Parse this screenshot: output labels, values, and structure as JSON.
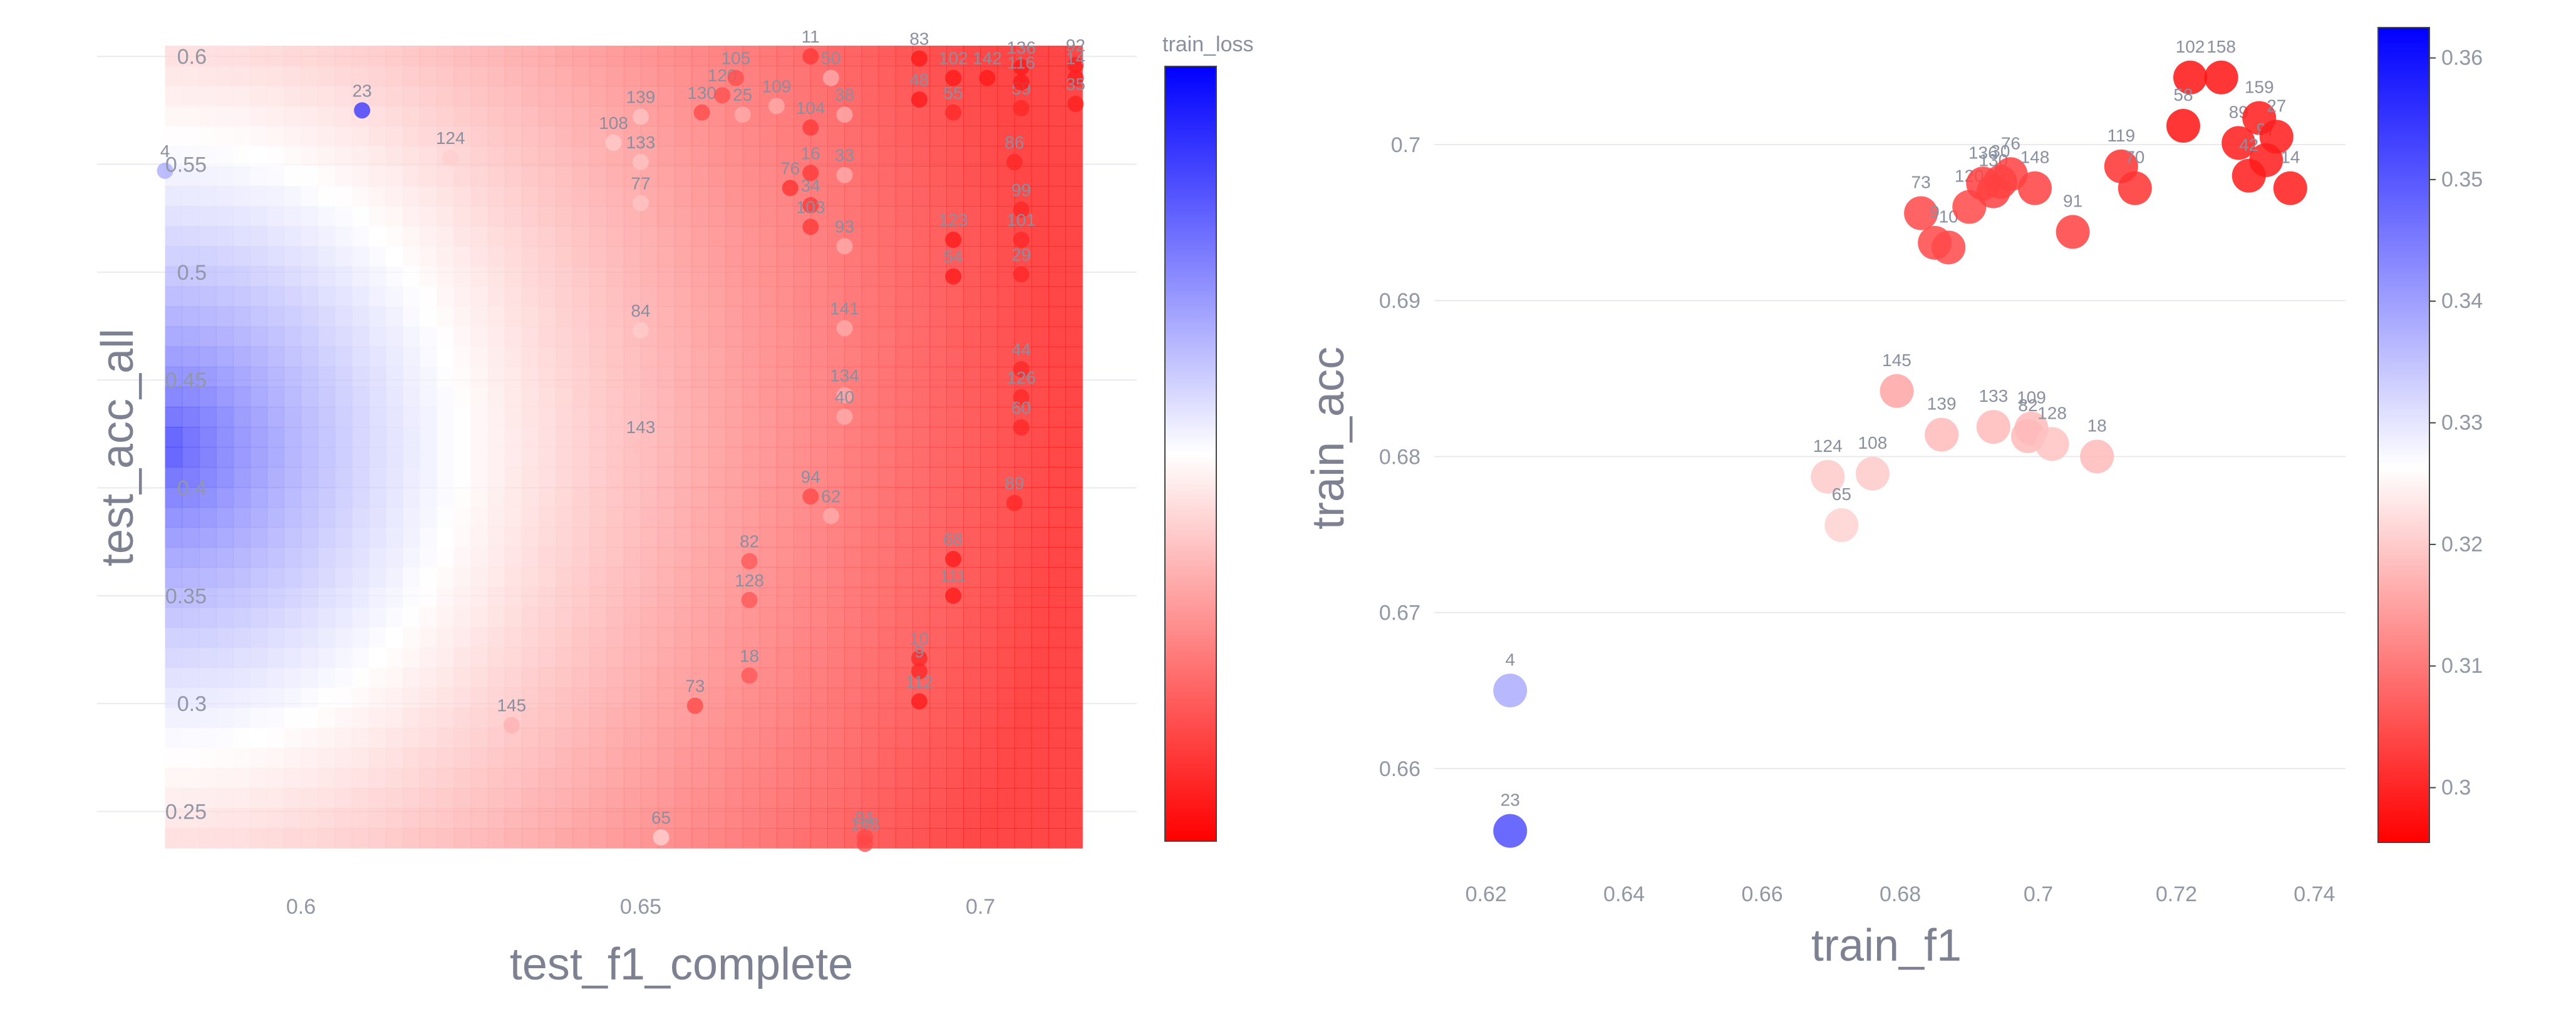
{
  "chart_data": [
    {
      "type": "scatter",
      "title": "",
      "xlabel": "test_f1_complete",
      "ylabel": "test_acc_all",
      "xlim": [
        0.57,
        0.723
      ],
      "ylim": [
        0.22,
        0.616
      ],
      "xticks": [
        0.6,
        0.65,
        0.7
      ],
      "xtick_labels": [
        "0.6",
        "0.65",
        "0.7"
      ],
      "yticks": [
        0.25,
        0.3,
        0.35,
        0.4,
        0.45,
        0.5,
        0.55,
        0.6
      ],
      "ytick_labels": [
        "0.25",
        "0.3",
        "0.35",
        "0.4",
        "0.45",
        "0.5",
        "0.55",
        "0.6"
      ],
      "background": "interpolated heatmap of train_loss (blue = high, white = mid, red = low)",
      "color_by": "train_loss",
      "colorbar": {
        "title": "train_loss",
        "colorscale": [
          "#ff0000",
          "#ffffff",
          "#0000ff"
        ],
        "min": 0.295,
        "max": 0.362,
        "ticks": [],
        "tick_labels": []
      },
      "points": [
        {
          "label": "4",
          "x": 0.58,
          "y": 0.547,
          "c": 0.34
        },
        {
          "label": "23",
          "x": 0.609,
          "y": 0.575,
          "c": 0.356
        },
        {
          "label": "124",
          "x": 0.622,
          "y": 0.553,
          "c": 0.322
        },
        {
          "label": "108",
          "x": 0.646,
          "y": 0.56,
          "c": 0.322
        },
        {
          "label": "139",
          "x": 0.65,
          "y": 0.572,
          "c": 0.321
        },
        {
          "label": "133",
          "x": 0.65,
          "y": 0.551,
          "c": 0.321
        },
        {
          "label": "77",
          "x": 0.65,
          "y": 0.532,
          "c": 0.321
        },
        {
          "label": "84",
          "x": 0.65,
          "y": 0.473,
          "c": 0.322
        },
        {
          "label": "143",
          "x": 0.65,
          "y": 0.419,
          "c": 0.32
        },
        {
          "label": "145",
          "x": 0.631,
          "y": 0.29,
          "c": 0.318
        },
        {
          "label": "65",
          "x": 0.653,
          "y": 0.238,
          "c": 0.323
        },
        {
          "label": "130",
          "x": 0.659,
          "y": 0.574,
          "c": 0.304
        },
        {
          "label": "120",
          "x": 0.662,
          "y": 0.582,
          "c": 0.305
        },
        {
          "label": "105",
          "x": 0.664,
          "y": 0.59,
          "c": 0.305
        },
        {
          "label": "25",
          "x": 0.665,
          "y": 0.573,
          "c": 0.318
        },
        {
          "label": "109",
          "x": 0.67,
          "y": 0.577,
          "c": 0.318
        },
        {
          "label": "76",
          "x": 0.672,
          "y": 0.539,
          "c": 0.301
        },
        {
          "label": "34",
          "x": 0.675,
          "y": 0.531,
          "c": 0.302
        },
        {
          "label": "16",
          "x": 0.675,
          "y": 0.546,
          "c": 0.302
        },
        {
          "label": "103",
          "x": 0.675,
          "y": 0.521,
          "c": 0.302
        },
        {
          "label": "104",
          "x": 0.675,
          "y": 0.567,
          "c": 0.302
        },
        {
          "label": "11",
          "x": 0.675,
          "y": 0.6,
          "c": 0.302
        },
        {
          "label": "33",
          "x": 0.68,
          "y": 0.545,
          "c": 0.318
        },
        {
          "label": "38",
          "x": 0.68,
          "y": 0.573,
          "c": 0.318
        },
        {
          "label": "50",
          "x": 0.678,
          "y": 0.59,
          "c": 0.318
        },
        {
          "label": "93",
          "x": 0.68,
          "y": 0.512,
          "c": 0.318
        },
        {
          "label": "141",
          "x": 0.68,
          "y": 0.474,
          "c": 0.318
        },
        {
          "label": "134",
          "x": 0.68,
          "y": 0.443,
          "c": 0.318
        },
        {
          "label": "40",
          "x": 0.68,
          "y": 0.433,
          "c": 0.318
        },
        {
          "label": "94",
          "x": 0.675,
          "y": 0.396,
          "c": 0.304
        },
        {
          "label": "62",
          "x": 0.678,
          "y": 0.387,
          "c": 0.318
        },
        {
          "label": "82",
          "x": 0.666,
          "y": 0.366,
          "c": 0.306
        },
        {
          "label": "128",
          "x": 0.666,
          "y": 0.348,
          "c": 0.306
        },
        {
          "label": "18",
          "x": 0.666,
          "y": 0.313,
          "c": 0.306
        },
        {
          "label": "73",
          "x": 0.658,
          "y": 0.299,
          "c": 0.304
        },
        {
          "label": "91",
          "x": 0.683,
          "y": 0.238,
          "c": 0.304
        },
        {
          "label": "148",
          "x": 0.683,
          "y": 0.235,
          "c": 0.304
        },
        {
          "label": "83",
          "x": 0.691,
          "y": 0.599,
          "c": 0.298
        },
        {
          "label": "48",
          "x": 0.691,
          "y": 0.58,
          "c": 0.298
        },
        {
          "label": "10",
          "x": 0.691,
          "y": 0.321,
          "c": 0.3
        },
        {
          "label": "9",
          "x": 0.691,
          "y": 0.315,
          "c": 0.3
        },
        {
          "label": "112",
          "x": 0.691,
          "y": 0.301,
          "c": 0.298
        },
        {
          "label": "102",
          "x": 0.696,
          "y": 0.59,
          "c": 0.298
        },
        {
          "label": "55",
          "x": 0.696,
          "y": 0.574,
          "c": 0.3
        },
        {
          "label": "123",
          "x": 0.696,
          "y": 0.515,
          "c": 0.298
        },
        {
          "label": "54",
          "x": 0.696,
          "y": 0.498,
          "c": 0.298
        },
        {
          "label": "68",
          "x": 0.696,
          "y": 0.367,
          "c": 0.298
        },
        {
          "label": "111",
          "x": 0.696,
          "y": 0.35,
          "c": 0.298
        },
        {
          "label": "142",
          "x": 0.701,
          "y": 0.59,
          "c": 0.298
        },
        {
          "label": "86",
          "x": 0.705,
          "y": 0.551,
          "c": 0.3
        },
        {
          "label": "99",
          "x": 0.706,
          "y": 0.529,
          "c": 0.3
        },
        {
          "label": "101",
          "x": 0.706,
          "y": 0.515,
          "c": 0.3
        },
        {
          "label": "29",
          "x": 0.706,
          "y": 0.499,
          "c": 0.3
        },
        {
          "label": "44",
          "x": 0.706,
          "y": 0.455,
          "c": 0.3
        },
        {
          "label": "126",
          "x": 0.706,
          "y": 0.442,
          "c": 0.3
        },
        {
          "label": "60",
          "x": 0.706,
          "y": 0.428,
          "c": 0.3
        },
        {
          "label": "89",
          "x": 0.705,
          "y": 0.393,
          "c": 0.3
        },
        {
          "label": "59",
          "x": 0.706,
          "y": 0.576,
          "c": 0.3
        },
        {
          "label": "136",
          "x": 0.706,
          "y": 0.595,
          "c": 0.298
        },
        {
          "label": "116",
          "x": 0.706,
          "y": 0.588,
          "c": 0.298
        },
        {
          "label": "92",
          "x": 0.714,
          "y": 0.596,
          "c": 0.299
        },
        {
          "label": "14",
          "x": 0.714,
          "y": 0.59,
          "c": 0.299
        },
        {
          "label": "35",
          "x": 0.714,
          "y": 0.578,
          "c": 0.299
        }
      ]
    },
    {
      "type": "scatter",
      "title": "",
      "xlabel": "train_f1",
      "ylabel": "train_acc",
      "xlim": [
        0.6125,
        0.7445
      ],
      "ylim": [
        0.6535,
        0.7075
      ],
      "xticks": [
        0.62,
        0.64,
        0.66,
        0.68,
        0.7,
        0.72,
        0.74
      ],
      "xtick_labels": [
        "0.62",
        "0.64",
        "0.66",
        "0.68",
        "0.7",
        "0.72",
        "0.74"
      ],
      "yticks": [
        0.66,
        0.67,
        0.68,
        0.69,
        0.7
      ],
      "ytick_labels": [
        "0.66",
        "0.67",
        "0.68",
        "0.69",
        "0.7"
      ],
      "color_by": "train_loss",
      "colorbar": {
        "title": "",
        "colorscale": [
          "#ff0000",
          "#ffffff",
          "#0000ff"
        ],
        "min": 0.2955,
        "max": 0.3625,
        "ticks": [
          0.3,
          0.31,
          0.32,
          0.33,
          0.34,
          0.35,
          0.36
        ],
        "tick_labels": [
          "0.3",
          "0.31",
          "0.32",
          "0.33",
          "0.34",
          "0.35",
          "0.36"
        ]
      },
      "points": [
        {
          "label": "4",
          "x": 0.6235,
          "y": 0.665,
          "c": 0.34
        },
        {
          "label": "23",
          "x": 0.6235,
          "y": 0.656,
          "c": 0.352
        },
        {
          "label": "124",
          "x": 0.6695,
          "y": 0.6787,
          "c": 0.322
        },
        {
          "label": "65",
          "x": 0.6715,
          "y": 0.6756,
          "c": 0.323
        },
        {
          "label": "108",
          "x": 0.676,
          "y": 0.6789,
          "c": 0.322
        },
        {
          "label": "145",
          "x": 0.6795,
          "y": 0.6842,
          "c": 0.317
        },
        {
          "label": "139",
          "x": 0.686,
          "y": 0.6814,
          "c": 0.32
        },
        {
          "label": "133",
          "x": 0.6935,
          "y": 0.6819,
          "c": 0.32
        },
        {
          "label": "109",
          "x": 0.699,
          "y": 0.6818,
          "c": 0.32
        },
        {
          "label": "82",
          "x": 0.6985,
          "y": 0.6813,
          "c": 0.32
        },
        {
          "label": "128",
          "x": 0.702,
          "y": 0.6808,
          "c": 0.321
        },
        {
          "label": "18",
          "x": 0.7085,
          "y": 0.68,
          "c": 0.32
        },
        {
          "label": "73",
          "x": 0.683,
          "y": 0.6956,
          "c": 0.305
        },
        {
          "label": "9",
          "x": 0.685,
          "y": 0.6937,
          "c": 0.305
        },
        {
          "label": "10",
          "x": 0.687,
          "y": 0.6934,
          "c": 0.305
        },
        {
          "label": "120",
          "x": 0.69,
          "y": 0.696,
          "c": 0.305
        },
        {
          "label": "130",
          "x": 0.6935,
          "y": 0.697,
          "c": 0.304
        },
        {
          "label": "136",
          "x": 0.692,
          "y": 0.6975,
          "c": 0.304
        },
        {
          "label": "30",
          "x": 0.6945,
          "y": 0.6976,
          "c": 0.304
        },
        {
          "label": "76",
          "x": 0.696,
          "y": 0.6981,
          "c": 0.304
        },
        {
          "label": "148",
          "x": 0.6995,
          "y": 0.6972,
          "c": 0.304
        },
        {
          "label": "91",
          "x": 0.705,
          "y": 0.6944,
          "c": 0.304
        },
        {
          "label": "119",
          "x": 0.712,
          "y": 0.6986,
          "c": 0.302
        },
        {
          "label": "70",
          "x": 0.714,
          "y": 0.6972,
          "c": 0.302
        },
        {
          "label": "102",
          "x": 0.722,
          "y": 0.7043,
          "c": 0.298
        },
        {
          "label": "158",
          "x": 0.7265,
          "y": 0.7043,
          "c": 0.298
        },
        {
          "label": "58",
          "x": 0.721,
          "y": 0.7012,
          "c": 0.298
        },
        {
          "label": "89",
          "x": 0.729,
          "y": 0.7001,
          "c": 0.299
        },
        {
          "label": "159",
          "x": 0.732,
          "y": 0.7017,
          "c": 0.299
        },
        {
          "label": "97",
          "x": 0.733,
          "y": 0.699,
          "c": 0.299
        },
        {
          "label": "42",
          "x": 0.7305,
          "y": 0.698,
          "c": 0.299
        },
        {
          "label": "27",
          "x": 0.7345,
          "y": 0.7005,
          "c": 0.299
        },
        {
          "label": "14",
          "x": 0.7365,
          "y": 0.6972,
          "c": 0.299
        }
      ]
    }
  ]
}
